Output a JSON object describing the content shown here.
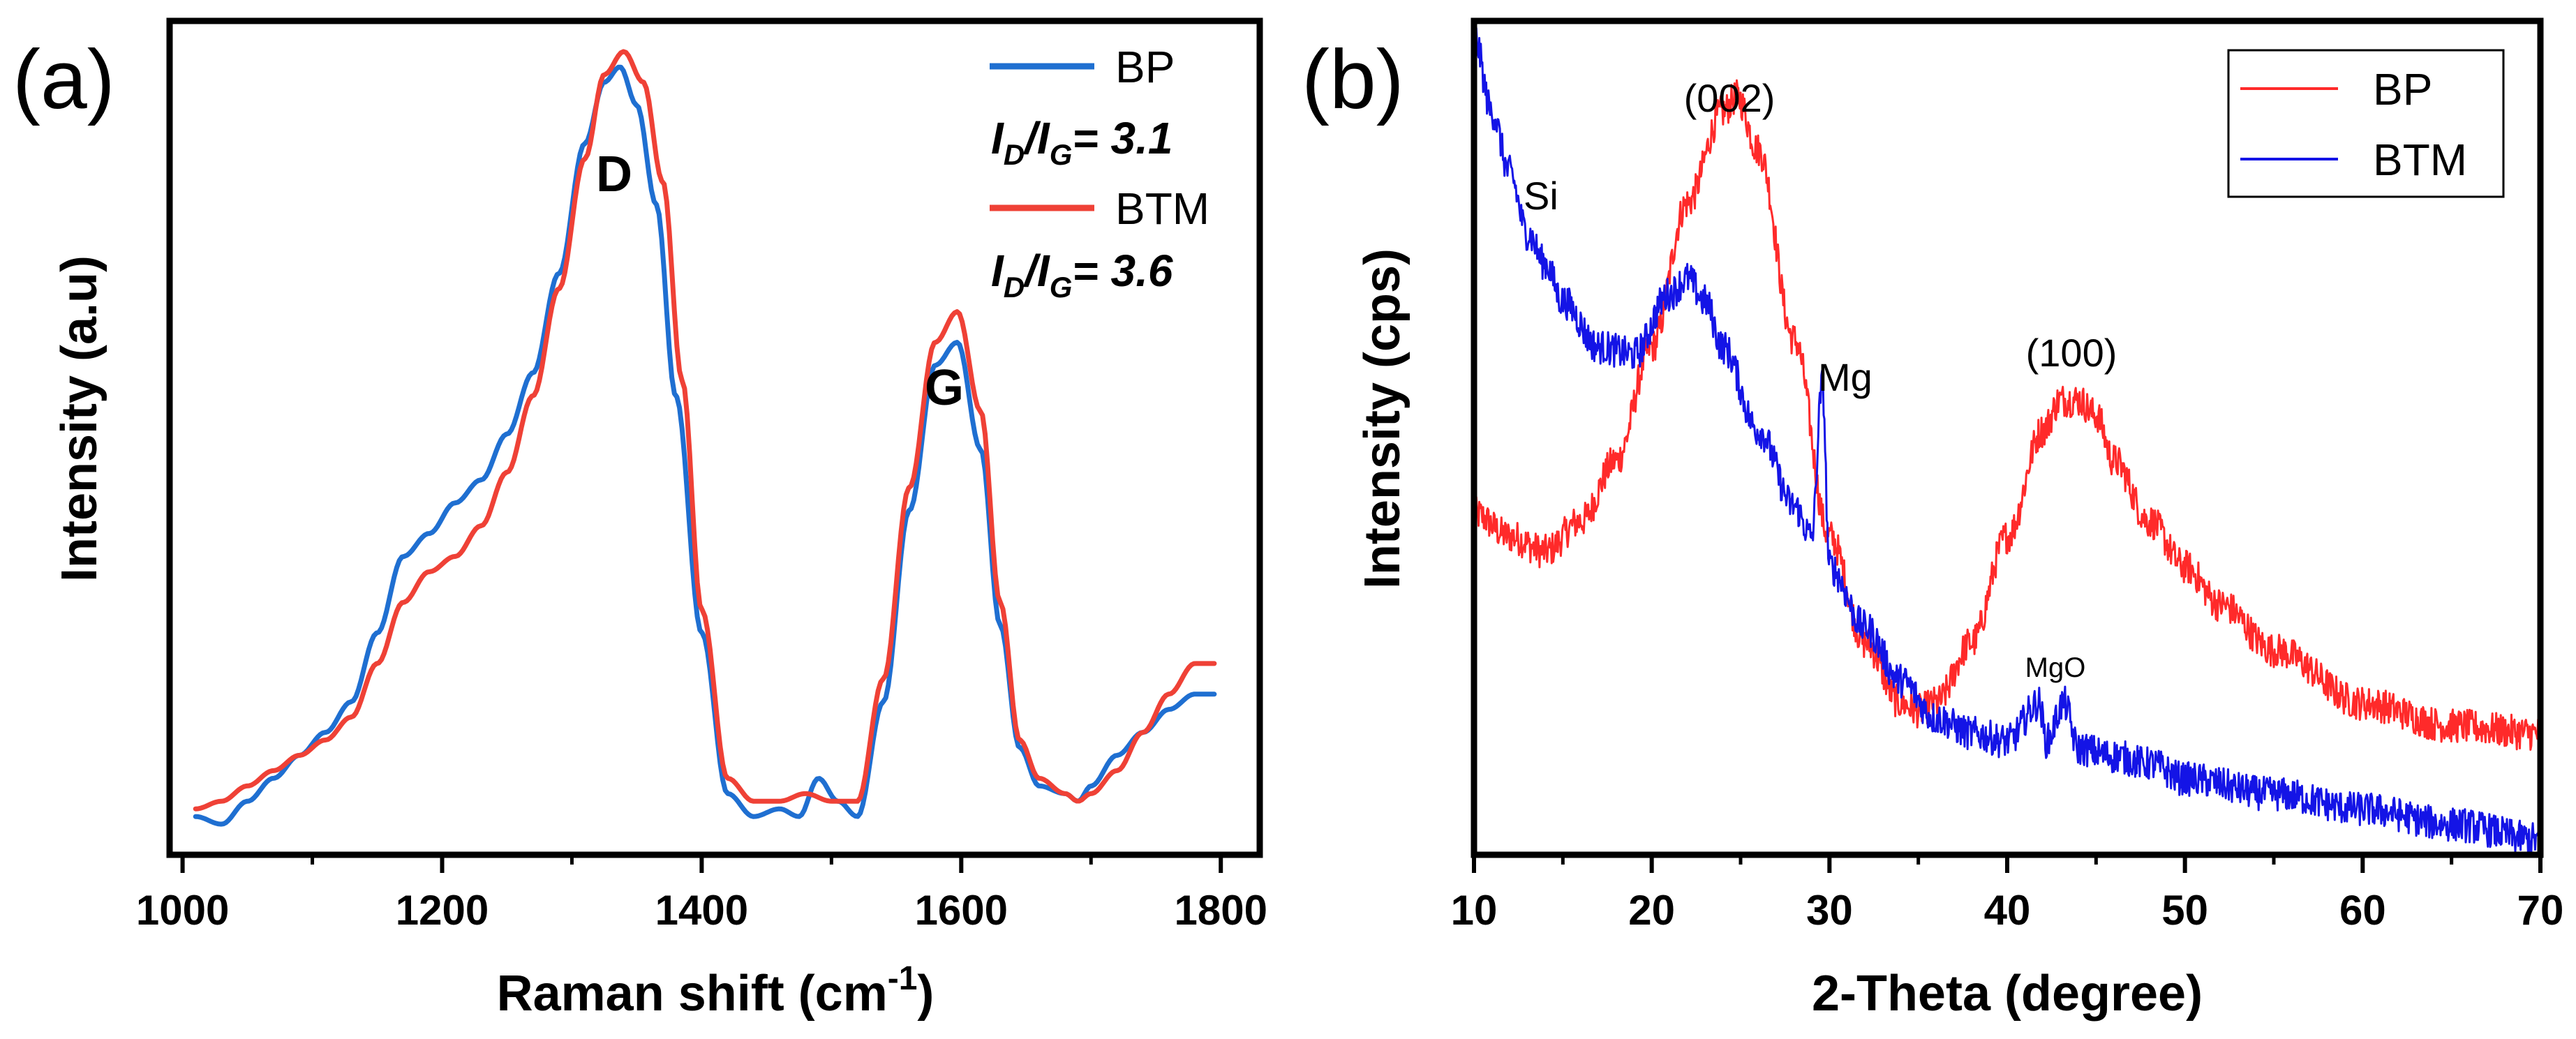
{
  "chart_data": [
    {
      "panel_label": "(a)",
      "type": "line",
      "title": "",
      "xlabel": "Raman shift (cm",
      "xlabel_sup": "-1",
      "xlabel_close": ")",
      "ylabel": "Intensity (a.u)",
      "xlim": [
        990,
        1830
      ],
      "ylim": [
        0,
        1.09
      ],
      "xticks": [
        1000,
        1200,
        1400,
        1600,
        1800
      ],
      "minor_xticks": [
        1100,
        1300,
        1500,
        1700
      ],
      "show_yticks": false,
      "grid": false,
      "legend_position": "top-right",
      "series": [
        {
          "name": "BP",
          "color": "#1f6fd1",
          "x": [
            1010,
            1030,
            1050,
            1070,
            1090,
            1110,
            1130,
            1150,
            1170,
            1190,
            1210,
            1230,
            1250,
            1270,
            1290,
            1310,
            1325,
            1337,
            1350,
            1365,
            1380,
            1400,
            1420,
            1440,
            1460,
            1475,
            1490,
            1505,
            1520,
            1540,
            1560,
            1580,
            1597,
            1615,
            1630,
            1645,
            1660,
            1680,
            1690,
            1700,
            1720,
            1740,
            1760,
            1780,
            1795
          ],
          "y": [
            0.05,
            0.04,
            0.07,
            0.1,
            0.13,
            0.16,
            0.2,
            0.29,
            0.39,
            0.42,
            0.46,
            0.49,
            0.55,
            0.63,
            0.76,
            0.93,
            1.01,
            1.03,
            0.98,
            0.85,
            0.6,
            0.29,
            0.08,
            0.05,
            0.06,
            0.05,
            0.1,
            0.07,
            0.05,
            0.2,
            0.45,
            0.64,
            0.67,
            0.53,
            0.3,
            0.14,
            0.09,
            0.08,
            0.07,
            0.09,
            0.13,
            0.16,
            0.19,
            0.21,
            0.21
          ]
        },
        {
          "name": "BTM",
          "color": "#ef4136",
          "x": [
            1010,
            1030,
            1050,
            1070,
            1090,
            1110,
            1130,
            1150,
            1170,
            1190,
            1210,
            1230,
            1250,
            1270,
            1290,
            1310,
            1325,
            1340,
            1355,
            1370,
            1385,
            1400,
            1420,
            1440,
            1460,
            1480,
            1500,
            1520,
            1540,
            1560,
            1580,
            1597,
            1615,
            1630,
            1645,
            1660,
            1680,
            1690,
            1700,
            1720,
            1740,
            1760,
            1780,
            1795
          ],
          "y": [
            0.06,
            0.07,
            0.09,
            0.11,
            0.13,
            0.15,
            0.18,
            0.25,
            0.33,
            0.37,
            0.39,
            0.43,
            0.5,
            0.6,
            0.74,
            0.91,
            1.02,
            1.05,
            1.01,
            0.88,
            0.62,
            0.32,
            0.1,
            0.07,
            0.07,
            0.08,
            0.07,
            0.07,
            0.23,
            0.48,
            0.67,
            0.71,
            0.58,
            0.33,
            0.15,
            0.1,
            0.08,
            0.07,
            0.08,
            0.11,
            0.16,
            0.21,
            0.25,
            0.25
          ]
        }
      ],
      "legend_ratios": [
        "= 3.1",
        "= 3.6"
      ],
      "ratio_label": {
        "main": "I",
        "sub_d": "D",
        "slash": "/I",
        "sub_g": "G"
      },
      "annotations": [
        {
          "text": "D",
          "x": 1338,
          "y": 1.1
        },
        {
          "text": "G",
          "x": 1597,
          "y": 0.73
        }
      ]
    },
    {
      "panel_label": "(b)",
      "type": "line",
      "title": "",
      "xlabel": "2-Theta (degree)",
      "ylabel": "Intensity (cps)",
      "xlim": [
        10,
        70
      ],
      "ylim": [
        0,
        1.1
      ],
      "xticks": [
        10,
        20,
        30,
        40,
        50,
        60,
        70
      ],
      "minor_xticks": [
        15,
        25,
        35,
        45,
        55,
        65
      ],
      "show_yticks": false,
      "grid": false,
      "legend_position": "top-right",
      "series": [
        {
          "name": "BP",
          "color": "#ff2a2a",
          "x": [
            10,
            12,
            14,
            16,
            18,
            20,
            22,
            24,
            24.8,
            26,
            28,
            30,
            32,
            34,
            35,
            36,
            38,
            40,
            42,
            43,
            44,
            45,
            46,
            48,
            50,
            52,
            55,
            60,
            65,
            70
          ],
          "y": [
            0.45,
            0.42,
            0.4,
            0.44,
            0.52,
            0.67,
            0.86,
            0.98,
            1.0,
            0.93,
            0.68,
            0.42,
            0.28,
            0.2,
            0.19,
            0.2,
            0.28,
            0.42,
            0.56,
            0.6,
            0.6,
            0.58,
            0.52,
            0.44,
            0.38,
            0.33,
            0.27,
            0.2,
            0.17,
            0.16
          ]
        },
        {
          "name": "BTM",
          "color": "#1414e6",
          "x": [
            10,
            11,
            12,
            13,
            14,
            15,
            17,
            19,
            21,
            22,
            23,
            24,
            26,
            28,
            29,
            29.6,
            30,
            32,
            34,
            36,
            38,
            40,
            41.8,
            42.2,
            43.2,
            44,
            46,
            48,
            50,
            55,
            60,
            65,
            70
          ],
          "y": [
            1.08,
            0.98,
            0.9,
            0.82,
            0.78,
            0.73,
            0.67,
            0.66,
            0.74,
            0.76,
            0.73,
            0.67,
            0.56,
            0.46,
            0.42,
            0.62,
            0.38,
            0.3,
            0.23,
            0.18,
            0.16,
            0.15,
            0.2,
            0.15,
            0.2,
            0.14,
            0.13,
            0.12,
            0.1,
            0.08,
            0.06,
            0.04,
            0.02
          ]
        }
      ],
      "annotations": [
        {
          "text": "Si",
          "x": 12.8,
          "y": 0.92,
          "size": "small"
        },
        {
          "text": "(002)",
          "x": 24.4,
          "y": 1.07,
          "size": "small"
        },
        {
          "text": "Mg",
          "x": 31,
          "y": 0.69,
          "size": "small"
        },
        {
          "text": "(100)",
          "x": 43.5,
          "y": 0.73,
          "size": "small"
        },
        {
          "text": "MgO",
          "x": 43,
          "y": 0.26,
          "size": "tiny"
        }
      ]
    }
  ]
}
